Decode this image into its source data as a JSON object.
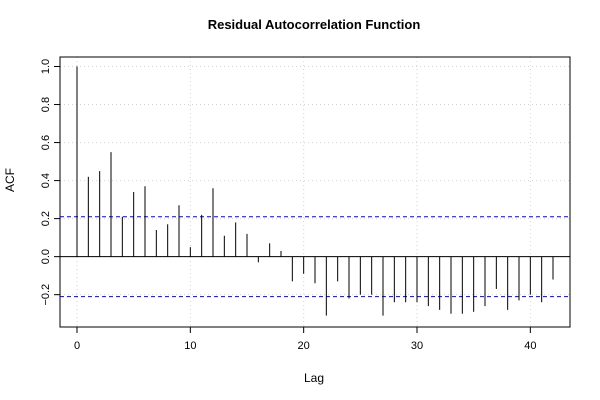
{
  "chart_data": {
    "type": "bar",
    "title": "Residual Autocorrelation Function",
    "xlabel": "Lag",
    "ylabel": "ACF",
    "xlim": [
      -1.5,
      43.5
    ],
    "ylim": [
      -0.37,
      1.05
    ],
    "x_ticks": [
      0,
      10,
      20,
      30,
      40
    ],
    "y_ticks": [
      -0.2,
      0.0,
      0.2,
      0.4,
      0.6,
      0.8,
      1.0
    ],
    "x_tick_labels": [
      "0",
      "10",
      "20",
      "30",
      "40"
    ],
    "y_tick_labels": [
      "−0.2",
      "0.0",
      "0.2",
      "0.4",
      "0.6",
      "0.8",
      "1.0"
    ],
    "grid": true,
    "confidence_band": [
      0.21,
      -0.21
    ],
    "colors": {
      "bars": "#000000",
      "confidence": "#0000ff",
      "grid": "#d3d3d3"
    },
    "lags": [
      0,
      1,
      2,
      3,
      4,
      5,
      6,
      7,
      8,
      9,
      10,
      11,
      12,
      13,
      14,
      15,
      16,
      17,
      18,
      19,
      20,
      21,
      22,
      23,
      24,
      25,
      26,
      27,
      28,
      29,
      30,
      31,
      32,
      33,
      34,
      35,
      36,
      37,
      38,
      39,
      40,
      41,
      42
    ],
    "values": [
      1.0,
      0.42,
      0.45,
      0.55,
      0.21,
      0.34,
      0.37,
      0.14,
      0.17,
      0.27,
      0.05,
      0.22,
      0.36,
      0.11,
      0.18,
      0.12,
      -0.03,
      0.07,
      0.03,
      -0.13,
      -0.09,
      -0.14,
      -0.31,
      -0.13,
      -0.22,
      -0.2,
      -0.2,
      -0.31,
      -0.24,
      -0.24,
      -0.24,
      -0.26,
      -0.28,
      -0.3,
      -0.3,
      -0.29,
      -0.26,
      -0.17,
      -0.28,
      -0.23,
      -0.2,
      -0.24,
      -0.12
    ]
  }
}
